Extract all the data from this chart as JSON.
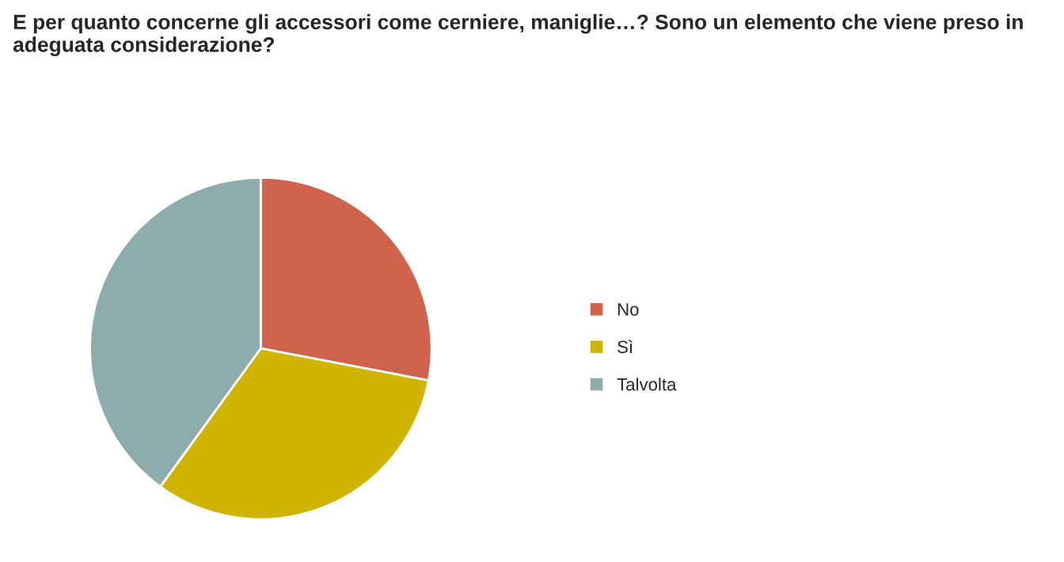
{
  "chart_data": {
    "type": "pie",
    "title": "E per quanto concerne gli accessori come cerniere, maniglie…? Sono un elemento che viene preso in adeguata considerazione?",
    "categories": [
      "No",
      "Sì",
      "Talvolta"
    ],
    "values": [
      28,
      32,
      40
    ],
    "colors": [
      "#d0634b",
      "#cfb500",
      "#8eacac"
    ],
    "legend": "right"
  }
}
